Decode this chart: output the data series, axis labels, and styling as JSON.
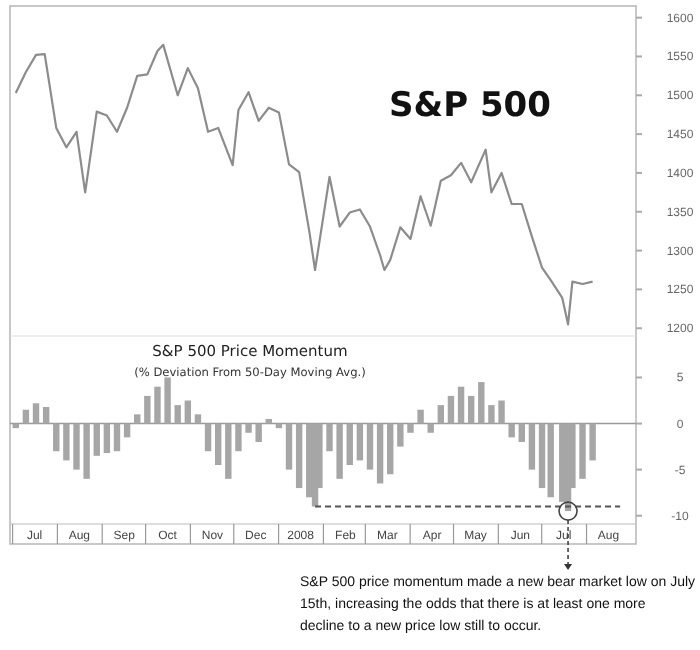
{
  "chart_data": [
    {
      "type": "line",
      "title": "S&P 500",
      "x": [
        "2007-06-29",
        "2007-07-06",
        "2007-07-13",
        "2007-07-19",
        "2007-07-27",
        "2007-08-03",
        "2007-08-10",
        "2007-08-16",
        "2007-08-24",
        "2007-08-31",
        "2007-09-07",
        "2007-09-14",
        "2007-09-21",
        "2007-09-28",
        "2007-10-05",
        "2007-10-09",
        "2007-10-19",
        "2007-10-26",
        "2007-11-02",
        "2007-11-09",
        "2007-11-16",
        "2007-11-26",
        "2007-11-30",
        "2007-12-07",
        "2007-12-14",
        "2007-12-21",
        "2007-12-28",
        "2008-01-04",
        "2008-01-11",
        "2008-01-18",
        "2008-01-22",
        "2008-02-01",
        "2008-02-08",
        "2008-02-15",
        "2008-02-22",
        "2008-02-29",
        "2008-03-07",
        "2008-03-10",
        "2008-03-14",
        "2008-03-21",
        "2008-03-28",
        "2008-04-04",
        "2008-04-11",
        "2008-04-18",
        "2008-04-25",
        "2008-05-02",
        "2008-05-09",
        "2008-05-19",
        "2008-05-23",
        "2008-05-30",
        "2008-06-06",
        "2008-06-13",
        "2008-06-20",
        "2008-06-27",
        "2008-07-03",
        "2008-07-11",
        "2008-07-15",
        "2008-07-18",
        "2008-07-25",
        "2008-08-01"
      ],
      "series": [
        {
          "color": "#8c8c8c",
          "values": [
            1503,
            1530,
            1552,
            1553,
            1458,
            1433,
            1453,
            1375,
            1479,
            1474,
            1453,
            1484,
            1525,
            1527,
            1557,
            1565,
            1500,
            1535,
            1509,
            1453,
            1458,
            1410,
            1481,
            1504,
            1467,
            1484,
            1478,
            1411,
            1401,
            1325,
            1275,
            1395,
            1331,
            1349,
            1353,
            1331,
            1294,
            1275,
            1288,
            1330,
            1315,
            1370,
            1332,
            1390,
            1397,
            1413,
            1388,
            1430,
            1375,
            1400,
            1360,
            1360,
            1318,
            1278,
            1262,
            1239,
            1205,
            1260,
            1257,
            1260
          ]
        }
      ],
      "xlim": [
        "2007-06-25",
        "2008-08-31"
      ],
      "ylim": [
        1190,
        1615
      ],
      "yticks": [
        1200,
        1250,
        1300,
        1350,
        1400,
        1450,
        1500,
        1550,
        1600
      ],
      "tick_labels": "y"
    },
    {
      "type": "bar",
      "title": "S&P 500 Price Momentum",
      "subtitle": "(% Deviation From 50-Day Moving Avg.)",
      "x": [
        "2007-06-29",
        "2007-07-06",
        "2007-07-13",
        "2007-07-20",
        "2007-07-27",
        "2007-08-03",
        "2007-08-10",
        "2007-08-17",
        "2007-08-24",
        "2007-08-31",
        "2007-09-07",
        "2007-09-14",
        "2007-09-21",
        "2007-09-28",
        "2007-10-05",
        "2007-10-12",
        "2007-10-19",
        "2007-10-26",
        "2007-11-02",
        "2007-11-09",
        "2007-11-16",
        "2007-11-23",
        "2007-11-30",
        "2007-12-07",
        "2007-12-14",
        "2007-12-21",
        "2007-12-28",
        "2008-01-04",
        "2008-01-11",
        "2008-01-18",
        "2008-01-22",
        "2008-01-25",
        "2008-02-01",
        "2008-02-08",
        "2008-02-15",
        "2008-02-22",
        "2008-02-29",
        "2008-03-07",
        "2008-03-14",
        "2008-03-21",
        "2008-03-28",
        "2008-04-04",
        "2008-04-11",
        "2008-04-18",
        "2008-04-25",
        "2008-05-02",
        "2008-05-09",
        "2008-05-16",
        "2008-05-23",
        "2008-05-30",
        "2008-06-06",
        "2008-06-13",
        "2008-06-20",
        "2008-06-27",
        "2008-07-03",
        "2008-07-11",
        "2008-07-15",
        "2008-07-18",
        "2008-07-25",
        "2008-08-01"
      ],
      "series": [
        {
          "type": "bar",
          "color": "#a6a6a6",
          "values": [
            -0.5,
            1.5,
            2.2,
            1.8,
            -3,
            -4,
            -5,
            -6,
            -3.5,
            -3.2,
            -3,
            -1.5,
            1,
            3,
            4,
            5,
            2,
            2.5,
            1,
            -3,
            -4.5,
            -6,
            -3,
            -1,
            -2,
            0.5,
            -0.5,
            -5,
            -7,
            -8,
            -9,
            -7,
            -3,
            -6,
            -4.5,
            -4,
            -5,
            -6.5,
            -5.5,
            -2.5,
            -1,
            1.5,
            -1,
            2,
            3,
            4,
            3,
            4.5,
            2,
            2.5,
            -1.5,
            -2,
            -5,
            -7,
            -8,
            -8.5,
            -9.5,
            -7,
            -6,
            -4
          ]
        },
        {
          "type": "line",
          "x": [
            "2008-01-22",
            "2008-08-20"
          ],
          "values": [
            -9,
            -9
          ],
          "color": "#555555",
          "line_style": "dashed"
        }
      ],
      "xlim": [
        "2007-06-25",
        "2008-08-31"
      ],
      "xticks": [
        {
          "value": "2007-07-12",
          "label": "Jul"
        },
        {
          "value": "2007-08-12",
          "label": "Aug"
        },
        {
          "value": "2007-09-12",
          "label": "Sep"
        },
        {
          "value": "2007-10-12",
          "label": "Oct"
        },
        {
          "value": "2007-11-12",
          "label": "Nov"
        },
        {
          "value": "2007-12-12",
          "label": "Dec"
        },
        {
          "value": "2008-01-12",
          "label": "2008"
        },
        {
          "value": "2008-02-12",
          "label": "Feb"
        },
        {
          "value": "2008-03-12",
          "label": "Mar"
        },
        {
          "value": "2008-04-12",
          "label": "Apr"
        },
        {
          "value": "2008-05-12",
          "label": "May"
        },
        {
          "value": "2008-06-12",
          "label": "Jun"
        },
        {
          "value": "2008-07-12",
          "label": "Jul"
        },
        {
          "value": "2008-08-12",
          "label": "Aug"
        }
      ],
      "ylim": [
        -10.9,
        9.5
      ],
      "yticks": [
        -10,
        -5,
        0,
        5
      ],
      "annotations": [
        {
          "text": "S&P 500 price momentum made a new bear market low on July 15th, increasing the odds that there is at least one more decline to a new price low still to occur.",
          "x": "2008-07-15",
          "y": -9.5
        }
      ]
    }
  ]
}
